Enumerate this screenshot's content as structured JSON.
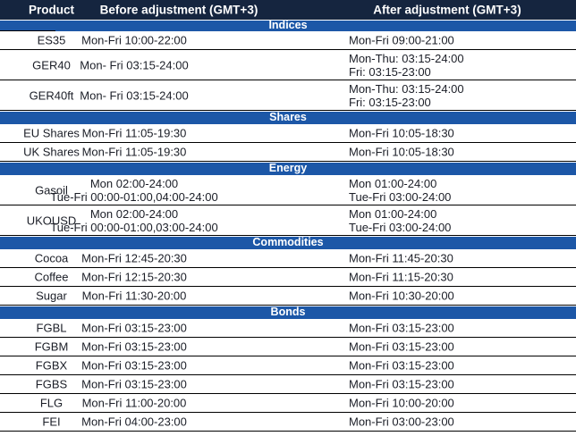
{
  "header": {
    "product": "Product",
    "before": "Before adjustment (GMT+3)",
    "after": "After adjustment (GMT+3)"
  },
  "colors": {
    "header_bg": "#15253f",
    "band_bg": "#1c57a7",
    "header_text": "#ffffff",
    "text": "#1b1e27",
    "border": "#000000"
  },
  "sections": [
    {
      "name": "Indices",
      "rows": [
        {
          "product": "ES35",
          "before": [
            "Mon-Fri 10:00-22:00"
          ],
          "after": [
            "Mon-Fri 09:00-21:00"
          ]
        },
        {
          "product": "GER40",
          "before": [
            "Mon- Fri 03:15-24:00"
          ],
          "after": [
            "Mon-Thu: 03:15-24:00",
            "Fri: 03:15-23:00"
          ]
        },
        {
          "product": "GER40ft",
          "before": [
            "Mon- Fri 03:15-24:00"
          ],
          "after": [
            "Mon-Thu: 03:15-24:00",
            "Fri: 03:15-23:00"
          ]
        }
      ]
    },
    {
      "name": "Shares",
      "rows": [
        {
          "product": "EU Shares",
          "before": [
            "Mon-Fri 11:05-19:30"
          ],
          "after": [
            "Mon-Fri 10:05-18:30"
          ]
        },
        {
          "product": "UK Shares",
          "before": [
            "Mon-Fri 11:05-19:30"
          ],
          "after": [
            "Mon-Fri 10:05-18:30"
          ]
        }
      ]
    },
    {
      "name": "Energy",
      "rows": [
        {
          "product": "Gasoil",
          "before": [
            "Mon 02:00-24:00",
            "Tue-Fri 00:00-01:00,04:00-24:00"
          ],
          "after": [
            "Mon 01:00-24:00",
            "Tue-Fri 03:00-24:00"
          ]
        },
        {
          "product": "UKOUSD",
          "before": [
            "Mon 02:00-24:00",
            "Tue-Fri 00:00-01:00,03:00-24:00"
          ],
          "after": [
            "Mon 01:00-24:00",
            "Tue-Fri 03:00-24:00"
          ]
        }
      ]
    },
    {
      "name": "Commodities",
      "rows": [
        {
          "product": "Cocoa",
          "before": [
            "Mon-Fri 12:45-20:30"
          ],
          "after": [
            "Mon-Fri 11:45-20:30"
          ]
        },
        {
          "product": "Coffee",
          "before": [
            "Mon-Fri 12:15-20:30"
          ],
          "after": [
            "Mon-Fri 11:15-20:30"
          ]
        },
        {
          "product": "Sugar",
          "before": [
            "Mon-Fri 11:30-20:00"
          ],
          "after": [
            "Mon-Fri 10:30-20:00"
          ]
        }
      ]
    },
    {
      "name": "Bonds",
      "rows": [
        {
          "product": "FGBL",
          "before": [
            "Mon-Fri 03:15-23:00"
          ],
          "after": [
            "Mon-Fri 03:15-23:00"
          ]
        },
        {
          "product": "FGBM",
          "before": [
            "Mon-Fri 03:15-23:00"
          ],
          "after": [
            "Mon-Fri 03:15-23:00"
          ]
        },
        {
          "product": "FGBX",
          "before": [
            "Mon-Fri 03:15-23:00"
          ],
          "after": [
            "Mon-Fri 03:15-23:00"
          ]
        },
        {
          "product": "FGBS",
          "before": [
            "Mon-Fri 03:15-23:00"
          ],
          "after": [
            "Mon-Fri 03:15-23:00"
          ]
        },
        {
          "product": "FLG",
          "before": [
            "Mon-Fri 11:00-20:00"
          ],
          "after": [
            "Mon-Fri 10:00-20:00"
          ]
        },
        {
          "product": "FEI",
          "before": [
            "Mon-Fri 04:00-23:00"
          ],
          "after": [
            "Mon-Fri 03:00-23:00"
          ]
        }
      ]
    }
  ]
}
